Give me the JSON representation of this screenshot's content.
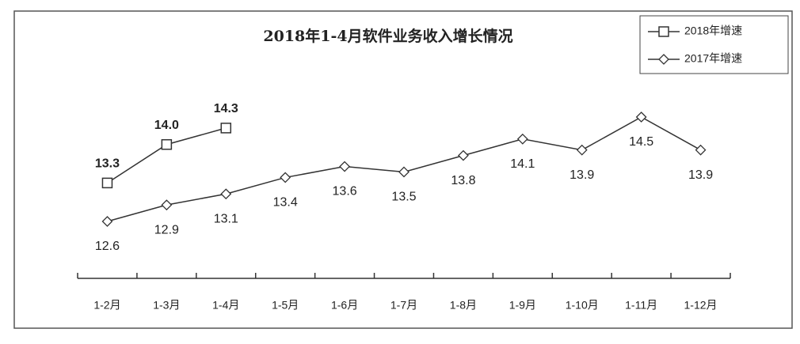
{
  "chart_data": {
    "type": "line",
    "title": "2018年1-4月软件业务收入增长情况",
    "categories": [
      "1-2月",
      "1-3月",
      "1-4月",
      "1-5月",
      "1-6月",
      "1-7月",
      "1-8月",
      "1-9月",
      "1-10月",
      "1-11月",
      "1-12月"
    ],
    "series": [
      {
        "name": "2018年增速",
        "color": "#333333",
        "marker": "square",
        "values": [
          13.3,
          14.0,
          14.3,
          null,
          null,
          null,
          null,
          null,
          null,
          null,
          null
        ],
        "value_labels": [
          "13.3",
          "14.0",
          "14.3",
          null,
          null,
          null,
          null,
          null,
          null,
          null,
          null
        ]
      },
      {
        "name": "2017年增速",
        "color": "#333333",
        "marker": "diamond",
        "values": [
          12.6,
          12.9,
          13.1,
          13.4,
          13.6,
          13.5,
          13.8,
          14.1,
          13.9,
          14.5,
          13.9
        ]
      }
    ],
    "legend": "upper right"
  }
}
